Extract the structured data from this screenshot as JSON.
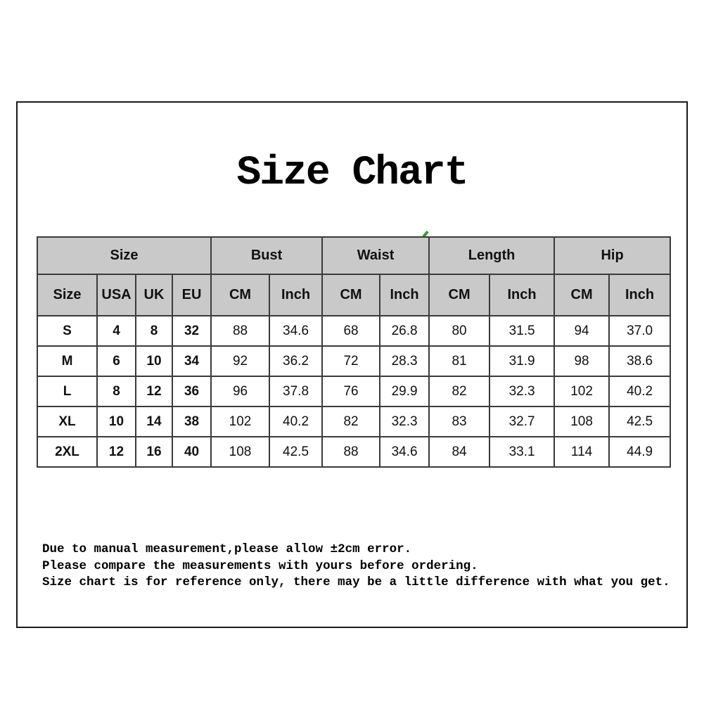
{
  "page": {
    "title": "Size Chart",
    "notes": [
      "Due to manual measurement,please allow ±2cm error.",
      "Please compare the measurements with yours before ordering.",
      "Size chart is for reference only, there may be a little difference with what you get."
    ]
  },
  "table": {
    "groups": [
      {
        "label": "Size",
        "span": 4
      },
      {
        "label": "Bust",
        "span": 2
      },
      {
        "label": "Waist",
        "span": 2
      },
      {
        "label": "Length",
        "span": 2
      },
      {
        "label": "Hip",
        "span": 2
      }
    ],
    "sub_headers": [
      "Size",
      "USA",
      "UK",
      "EU",
      "CM",
      "Inch",
      "CM",
      "Inch",
      "CM",
      "Inch",
      "CM",
      "Inch"
    ],
    "rows": [
      [
        "S",
        "4",
        "8",
        "32",
        "88",
        "34.6",
        "68",
        "26.8",
        "80",
        "31.5",
        "94",
        "37.0"
      ],
      [
        "M",
        "6",
        "10",
        "34",
        "92",
        "36.2",
        "72",
        "28.3",
        "81",
        "31.9",
        "98",
        "38.6"
      ],
      [
        "L",
        "8",
        "12",
        "36",
        "96",
        "37.8",
        "76",
        "29.9",
        "82",
        "32.3",
        "102",
        "40.2"
      ],
      [
        "XL",
        "10",
        "14",
        "38",
        "102",
        "40.2",
        "82",
        "32.3",
        "83",
        "32.7",
        "108",
        "42.5"
      ],
      [
        "2XL",
        "12",
        "16",
        "40",
        "108",
        "42.5",
        "88",
        "34.6",
        "84",
        "33.1",
        "114",
        "44.9"
      ]
    ]
  },
  "colors": {
    "header_bg": "#c9c9c9",
    "grid_line": "#3a3a3a",
    "frame_border": "#1a1a1a",
    "text": "#111111",
    "tick_green": "#2f9e2f"
  }
}
